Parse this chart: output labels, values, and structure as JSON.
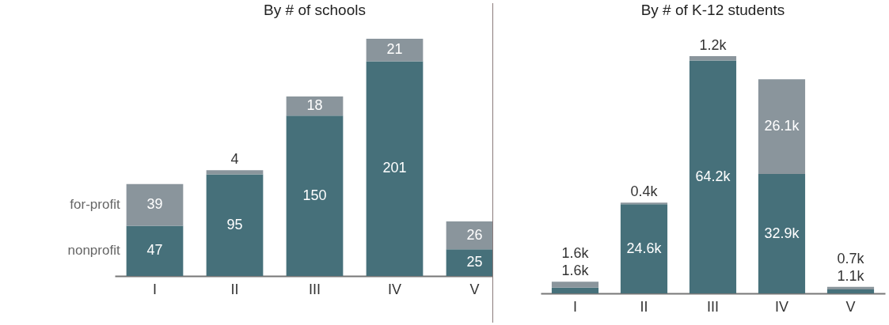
{
  "chart_data": [
    {
      "type": "bar",
      "title": "By # of schools",
      "categories": [
        "I",
        "II",
        "III",
        "IV",
        "V"
      ],
      "stacked": true,
      "legend": "left",
      "data_labels": true,
      "series": [
        {
          "name": "nonprofit",
          "color": "#46707a",
          "values": [
            47,
            95,
            150,
            201,
            25
          ]
        },
        {
          "name": "for-profit",
          "color": "#8a959c",
          "values": [
            39,
            4,
            18,
            21,
            26
          ]
        }
      ]
    },
    {
      "type": "bar",
      "title": "By # of K-12 students",
      "categories": [
        "I",
        "II",
        "III",
        "IV",
        "V"
      ],
      "stacked": true,
      "series": [
        {
          "color": "#46707a",
          "values": [
            1.6,
            24.6,
            64.2,
            32.9,
            1.1
          ],
          "value_labels": [
            "1.6k",
            "24.6k",
            "64.2k",
            "32.9k",
            "1.1k"
          ]
        },
        {
          "color": "#8a959c",
          "values": [
            1.6,
            0.4,
            1.2,
            26.1,
            0.7
          ],
          "value_labels": [
            "1.6k",
            "0.4k",
            "1.2k",
            "26.1k",
            "0.7k"
          ]
        }
      ]
    }
  ]
}
